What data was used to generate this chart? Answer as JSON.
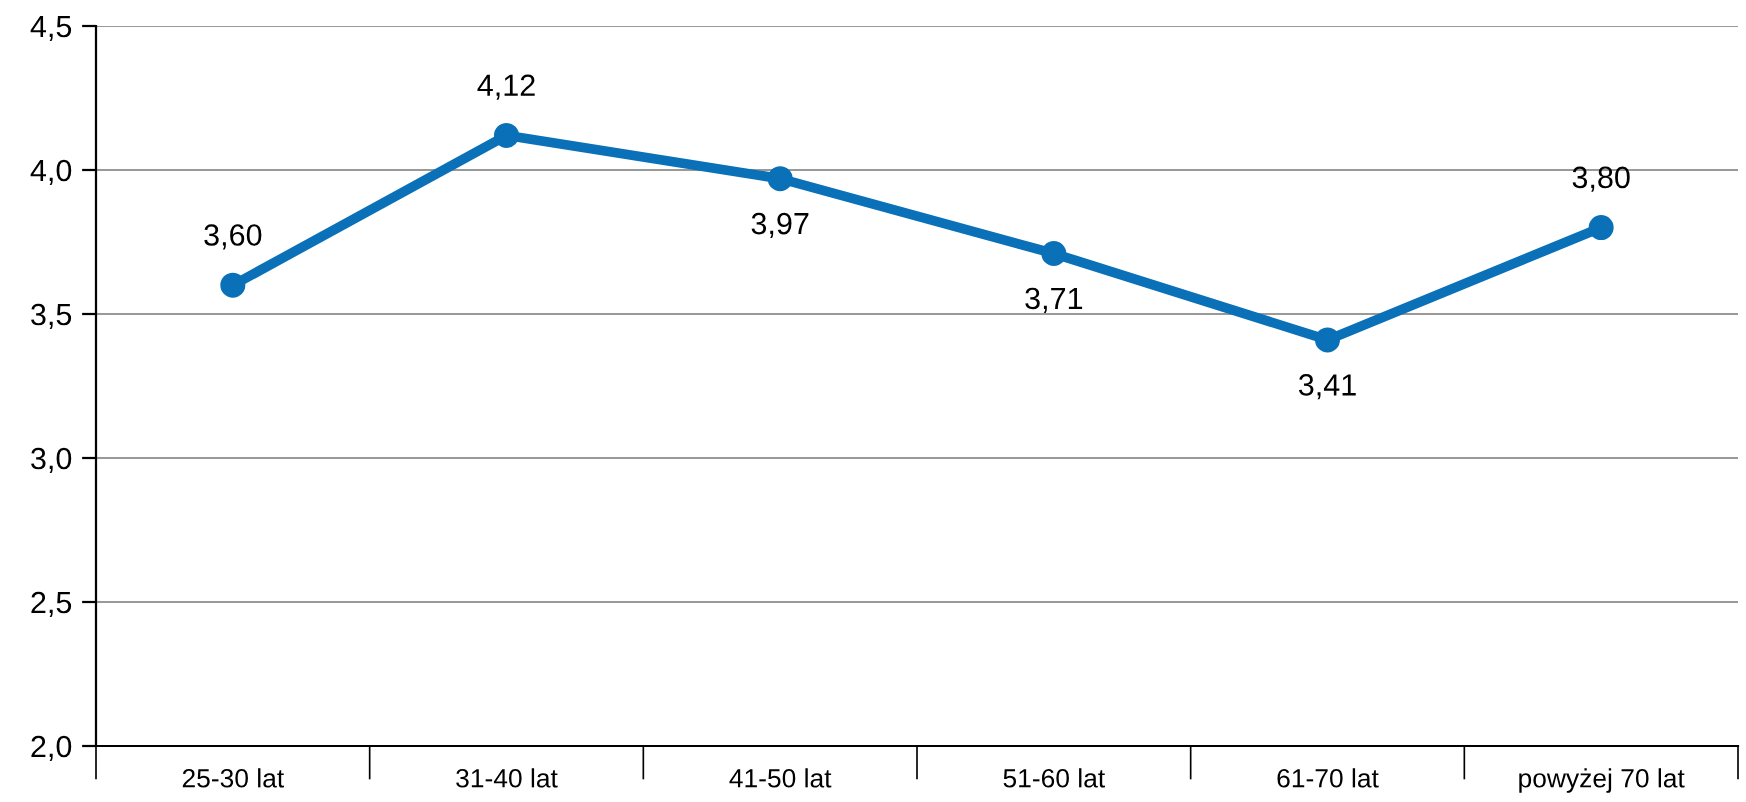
{
  "chart_data": {
    "type": "line",
    "categories": [
      "25-30 lat",
      "31-40 lat",
      "41-50 lat",
      "51-60 lat",
      "61-70 lat",
      "powyżej 70 lat"
    ],
    "series": [
      {
        "color": "#0a70b8",
        "values": [
          3.6,
          4.12,
          3.97,
          3.71,
          3.41,
          3.8
        ],
        "value_labels": [
          "3,60",
          "4,12",
          "3,97",
          "3,71",
          "3,41",
          "3,80"
        ]
      }
    ],
    "ylim": [
      2.0,
      4.5
    ],
    "yticks": [
      {
        "value": 2.0,
        "label": "2,0"
      },
      {
        "value": 2.5,
        "label": "2,5"
      },
      {
        "value": 3.0,
        "label": "3,0"
      },
      {
        "value": 3.5,
        "label": "3,5"
      },
      {
        "value": 4.0,
        "label": "4,0"
      },
      {
        "value": 4.5,
        "label": "4,5"
      }
    ],
    "grid": "y",
    "marker": "circle",
    "line_style": "solid",
    "legend": false
  }
}
